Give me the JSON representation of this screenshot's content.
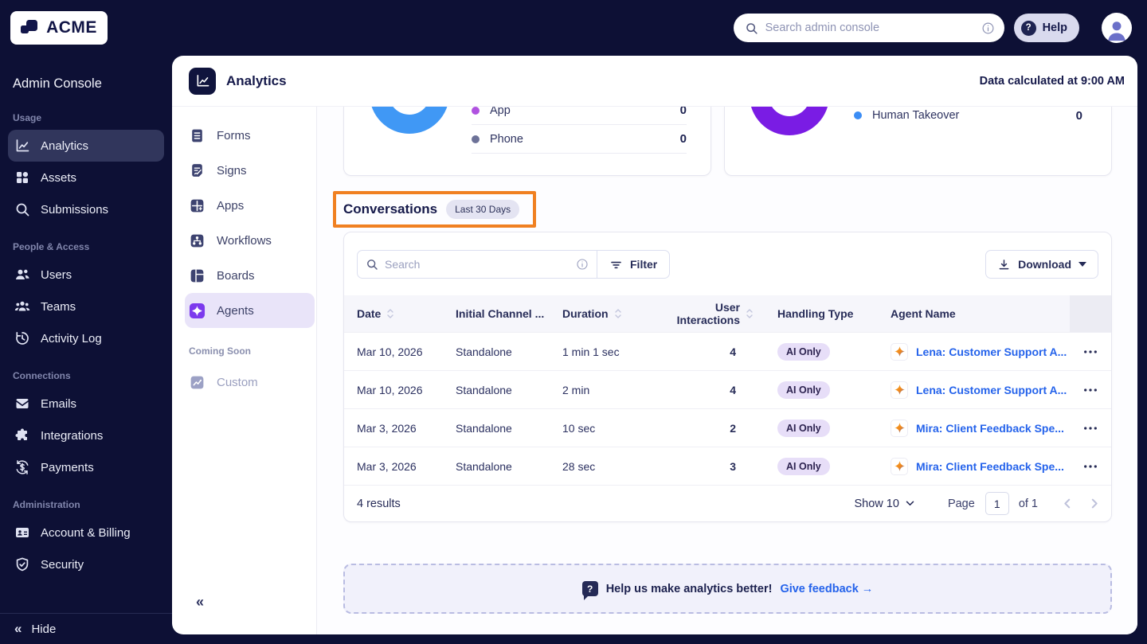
{
  "topbar": {
    "logo": "ACME",
    "search_placeholder": "Search admin console",
    "help_label": "Help"
  },
  "sidebar": {
    "title": "Admin Console",
    "sections": [
      {
        "label": "Usage",
        "items": [
          {
            "label": "Analytics",
            "icon": "analytics",
            "active": true
          },
          {
            "label": "Assets",
            "icon": "assets"
          },
          {
            "label": "Submissions",
            "icon": "search"
          }
        ]
      },
      {
        "label": "People & Access",
        "items": [
          {
            "label": "Users",
            "icon": "users"
          },
          {
            "label": "Teams",
            "icon": "teams"
          },
          {
            "label": "Activity Log",
            "icon": "activity-log"
          }
        ]
      },
      {
        "label": "Connections",
        "items": [
          {
            "label": "Emails",
            "icon": "emails"
          },
          {
            "label": "Integrations",
            "icon": "integrations"
          },
          {
            "label": "Payments",
            "icon": "payments"
          }
        ]
      },
      {
        "label": "Administration",
        "items": [
          {
            "label": "Account & Billing",
            "icon": "account-billing"
          },
          {
            "label": "Security",
            "icon": "security"
          }
        ]
      }
    ],
    "hide_label": "Hide"
  },
  "subnav": {
    "items": [
      {
        "label": "Forms",
        "icon": "forms"
      },
      {
        "label": "Signs",
        "icon": "signs"
      },
      {
        "label": "Apps",
        "icon": "apps"
      },
      {
        "label": "Workflows",
        "icon": "workflows"
      },
      {
        "label": "Boards",
        "icon": "boards"
      },
      {
        "label": "Agents",
        "icon": "agents",
        "active": true
      }
    ],
    "coming_soon_label": "Coming Soon",
    "coming_soon_items": [
      {
        "label": "Custom",
        "icon": "custom",
        "disabled": true
      }
    ]
  },
  "panel": {
    "title": "Analytics",
    "status": "Data calculated at 9:00 AM"
  },
  "overview_cards": [
    {
      "donut_color": "#4098f5",
      "legend": [
        {
          "label": "App",
          "value": "0",
          "color": "#b052e0"
        },
        {
          "label": "Phone",
          "value": "0",
          "color": "#6d7298"
        }
      ]
    },
    {
      "donut_color": "#7a1ce4",
      "legend": [
        {
          "label": "Human Takeover",
          "value": "0",
          "color": "#3b8df5"
        }
      ]
    }
  ],
  "conversations": {
    "title": "Conversations",
    "badge": "Last 30 Days",
    "highlight_color": "#f08021",
    "search_placeholder": "Search",
    "filter_label": "Filter",
    "download_label": "Download",
    "columns": [
      {
        "label": "Date",
        "sortable": true
      },
      {
        "label": "Initial Channel ...",
        "sortable": false
      },
      {
        "label": "Duration",
        "sortable": true
      },
      {
        "label": "User Interactions",
        "sortable": true,
        "align": "right"
      },
      {
        "label": "Handling Type",
        "sortable": false,
        "pad": true
      },
      {
        "label": "Agent Name",
        "sortable": false
      },
      {
        "label": "",
        "sortable": false,
        "actions": true
      }
    ],
    "rows": [
      {
        "date": "Mar 10, 2026",
        "channel": "Standalone",
        "duration": "1 min 1 sec",
        "interactions": "4",
        "handling": "AI Only",
        "agent": "Lena: Customer Support A..."
      },
      {
        "date": "Mar 10, 2026",
        "channel": "Standalone",
        "duration": "2 min",
        "interactions": "4",
        "handling": "AI Only",
        "agent": "Lena: Customer Support A..."
      },
      {
        "date": "Mar 3, 2026",
        "channel": "Standalone",
        "duration": "10 sec",
        "interactions": "2",
        "handling": "AI Only",
        "agent": "Mira: Client Feedback Spe..."
      },
      {
        "date": "Mar 3, 2026",
        "channel": "Standalone",
        "duration": "28 sec",
        "interactions": "3",
        "handling": "AI Only",
        "agent": "Mira: Client Feedback Spe..."
      }
    ],
    "footer": {
      "results": "4 results",
      "show_label": "Show 10",
      "page_label": "Page",
      "page_value": "1",
      "of_label": "of 1"
    }
  },
  "feedback": {
    "message": "Help us make analytics better!",
    "link_label": "Give feedback →"
  }
}
